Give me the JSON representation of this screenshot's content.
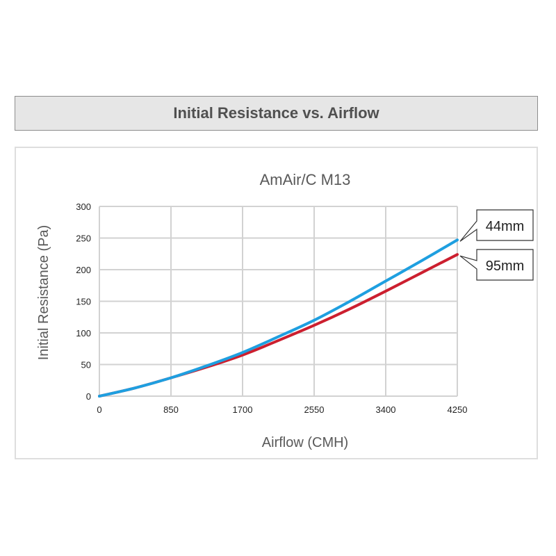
{
  "header": {
    "title": "Initial Resistance vs. Airflow"
  },
  "chart_data": {
    "type": "line",
    "title": "AmAir/C M13",
    "xlabel": "Airflow (CMH)",
    "ylabel": "Initial Resistance (Pa)",
    "xlim": [
      0,
      4250
    ],
    "ylim": [
      0,
      300
    ],
    "x_ticks": [
      0,
      850,
      1700,
      2550,
      3400,
      4250
    ],
    "y_ticks": [
      0,
      50,
      100,
      150,
      200,
      250,
      300
    ],
    "grid": true,
    "legend_placement": "right-end-callouts",
    "series": [
      {
        "name": "44mm",
        "color": "#1e9fe0",
        "x": [
          0,
          425,
          850,
          1275,
          1700,
          2125,
          2550,
          2975,
          3400,
          3825,
          4250
        ],
        "y": [
          0,
          13,
          29,
          48,
          69,
          94,
          120,
          150,
          182,
          214,
          247
        ]
      },
      {
        "name": "95mm",
        "color": "#cc1f2f",
        "x": [
          0,
          425,
          850,
          1275,
          1700,
          2125,
          2550,
          2975,
          3400,
          3825,
          4250
        ],
        "y": [
          0,
          13,
          29,
          46,
          65,
          88,
          112,
          138,
          166,
          195,
          224
        ]
      }
    ]
  }
}
